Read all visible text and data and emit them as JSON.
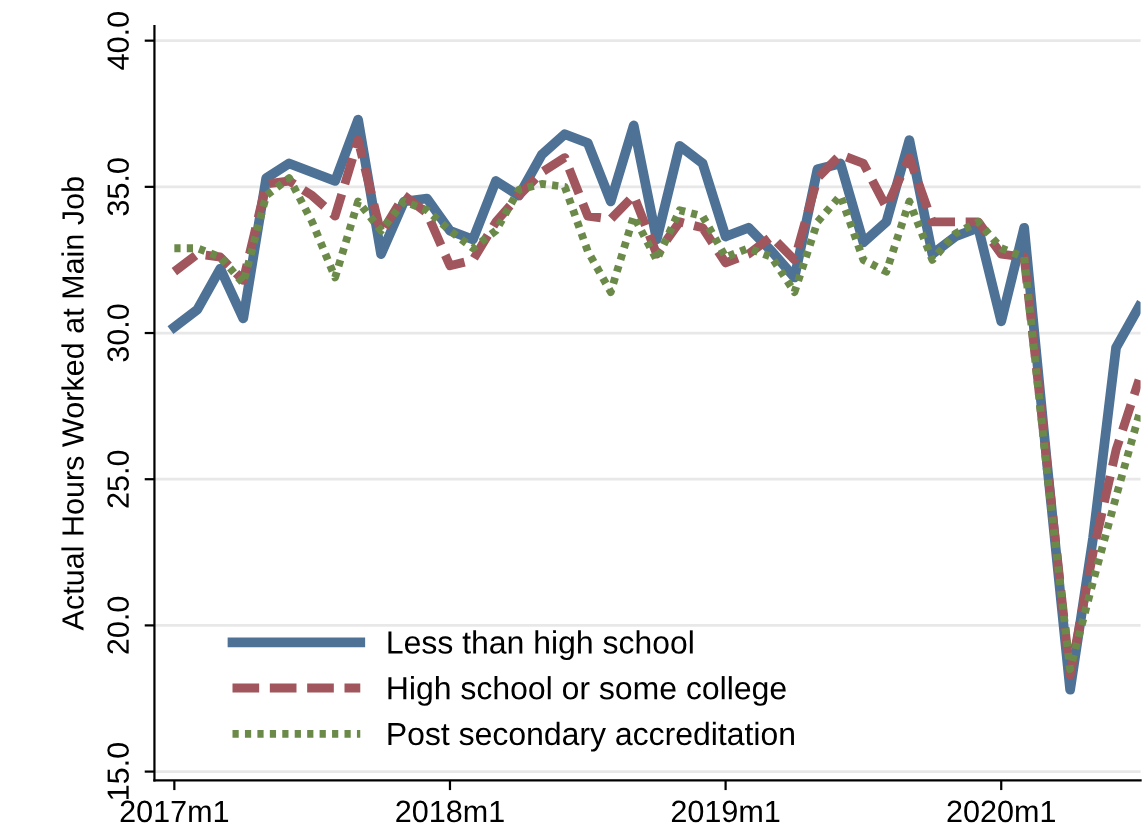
{
  "chart_data": {
    "type": "line",
    "ylabel": "Actual Hours Worked at Main Job",
    "x": [
      "2017-01",
      "2017-02",
      "2017-03",
      "2017-04",
      "2017-05",
      "2017-06",
      "2017-07",
      "2017-08",
      "2017-09",
      "2017-10",
      "2017-11",
      "2017-12",
      "2018-01",
      "2018-02",
      "2018-03",
      "2018-04",
      "2018-05",
      "2018-06",
      "2018-07",
      "2018-08",
      "2018-09",
      "2018-10",
      "2018-11",
      "2018-12",
      "2019-01",
      "2019-02",
      "2019-03",
      "2019-04",
      "2019-05",
      "2019-06",
      "2019-07",
      "2019-08",
      "2019-09",
      "2019-10",
      "2019-11",
      "2019-12",
      "2020-01",
      "2020-02",
      "2020-03",
      "2020-04",
      "2020-05",
      "2020-06",
      "2020-07"
    ],
    "series": [
      {
        "name": "Less than high school",
        "color": "#4e7296",
        "line_style": "solid",
        "values": [
          30.2,
          30.8,
          32.2,
          30.5,
          35.3,
          35.8,
          35.5,
          35.2,
          37.3,
          32.7,
          34.5,
          34.6,
          33.5,
          33.2,
          35.2,
          34.7,
          36.1,
          36.8,
          36.5,
          34.5,
          37.1,
          33.2,
          36.4,
          35.8,
          33.3,
          33.6,
          32.8,
          31.9,
          35.6,
          35.8,
          33.1,
          33.8,
          36.6,
          32.7,
          33.3,
          33.6,
          30.4,
          33.6,
          25.5,
          17.8,
          23.0,
          29.5,
          30.9
        ]
      },
      {
        "name": "High school or some college",
        "color": "#a0565c",
        "line_style": "dashed",
        "values": [
          32.1,
          32.7,
          32.6,
          31.8,
          35.1,
          35.2,
          34.7,
          34.0,
          36.6,
          33.4,
          34.7,
          34.1,
          32.3,
          32.5,
          33.8,
          34.7,
          35.5,
          36.0,
          34.0,
          33.9,
          34.7,
          32.7,
          33.8,
          33.6,
          32.4,
          32.7,
          33.3,
          32.5,
          35.3,
          36.1,
          35.8,
          34.3,
          36.0,
          33.8,
          33.8,
          33.8,
          32.7,
          32.6,
          25.5,
          18.3,
          22.5,
          26.0,
          28.4
        ]
      },
      {
        "name": "Post secondary accreditation",
        "color": "#6b8a4a",
        "line_style": "dotted",
        "values": [
          32.9,
          32.9,
          32.6,
          31.7,
          34.7,
          35.3,
          33.8,
          31.9,
          34.5,
          33.5,
          34.5,
          34.2,
          33.5,
          32.9,
          33.5,
          34.9,
          35.1,
          35.0,
          32.8,
          31.4,
          34.0,
          32.5,
          34.2,
          34.0,
          32.6,
          32.9,
          32.6,
          31.4,
          33.8,
          34.7,
          32.5,
          32.1,
          34.5,
          32.5,
          33.4,
          33.8,
          32.9,
          32.6,
          25.2,
          18.5,
          21.5,
          24.4,
          27.2
        ]
      }
    ],
    "xlim": [
      "2016-12-05",
      "2020-07-03"
    ],
    "xticks": [
      {
        "value": "2017-01",
        "label": "2017m1"
      },
      {
        "value": "2018-01",
        "label": "2018m1"
      },
      {
        "value": "2019-01",
        "label": "2019m1"
      },
      {
        "value": "2020-01",
        "label": "2020m1"
      }
    ],
    "ylim": [
      14.7,
      40.5
    ],
    "yticks": [
      {
        "value": 15,
        "label": "15.0"
      },
      {
        "value": 20,
        "label": "20.0"
      },
      {
        "value": 25,
        "label": "25.0"
      },
      {
        "value": 30,
        "label": "30.0"
      },
      {
        "value": 35,
        "label": "35.0"
      },
      {
        "value": 40,
        "label": "40.0"
      }
    ],
    "grid": "y",
    "legend": "bottom left",
    "marker": "none"
  }
}
